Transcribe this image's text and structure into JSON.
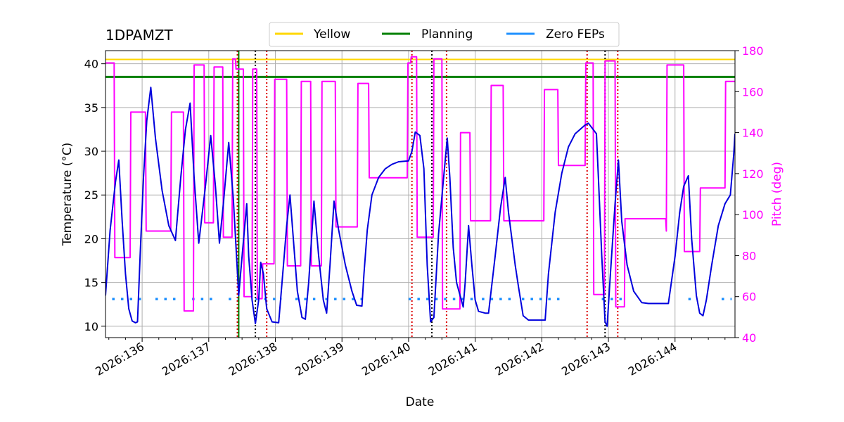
{
  "chart_data": {
    "type": "line",
    "title": "1DPAMZT",
    "xlabel": "Date",
    "ylabel": "Temperature ($^\\circ$C)",
    "ylabel_display": "Temperature (°C)",
    "y2label": "Pitch (deg)",
    "xlim": [
      135.45,
      144.9
    ],
    "ylim": [
      8.7,
      41.5
    ],
    "y2lim": [
      40,
      180
    ],
    "grid": true,
    "legend_position": "top-center",
    "x_ticks": [
      {
        "value": 136,
        "label": "2026:136"
      },
      {
        "value": 137,
        "label": "2026:137"
      },
      {
        "value": 138,
        "label": "2026:138"
      },
      {
        "value": 139,
        "label": "2026:139"
      },
      {
        "value": 140,
        "label": "2026:140"
      },
      {
        "value": 141,
        "label": "2026:141"
      },
      {
        "value": 142,
        "label": "2026:142"
      },
      {
        "value": 143,
        "label": "2026:143"
      },
      {
        "value": 144,
        "label": "2026:144"
      }
    ],
    "y_ticks": [
      10,
      15,
      20,
      25,
      30,
      35,
      40
    ],
    "y2_ticks": [
      40,
      60,
      80,
      100,
      120,
      140,
      160,
      180
    ],
    "colors": {
      "temperature": "#0000dd",
      "pitch": "#ff00ff",
      "yellow": "#ffd700",
      "planning": "#008000",
      "zero_feps": "#1e90ff",
      "red_marker": "#dd0000",
      "black_marker": "#000000"
    },
    "limit_lines": [
      {
        "name": "Yellow",
        "value": 40.5
      },
      {
        "name": "Planning",
        "value": 38.5
      },
      {
        "name": "Zero FEPs",
        "value": 13.1
      }
    ],
    "vertical_markers": {
      "green": [
        137.45
      ],
      "black_dotted": [
        137.7,
        140.35,
        142.95
      ],
      "red_dotted": [
        137.43,
        137.87,
        140.05,
        140.57,
        142.68,
        143.14
      ]
    },
    "zero_fep_intervals": [
      [
        135.55,
        136.0
      ],
      [
        136.2,
        136.5
      ],
      [
        136.75,
        137.1
      ],
      [
        137.3,
        137.45
      ],
      [
        137.7,
        138.1
      ],
      [
        138.3,
        138.6
      ],
      [
        138.75,
        139.4
      ],
      [
        140.0,
        140.3
      ],
      [
        140.4,
        141.0
      ],
      [
        141.1,
        141.6
      ],
      [
        141.7,
        142.3
      ],
      [
        142.9,
        143.2
      ],
      [
        144.2,
        144.3
      ],
      [
        144.7,
        144.85
      ]
    ],
    "series": [
      {
        "name": "Temperature",
        "axis": "left",
        "points": [
          [
            135.45,
            13.5
          ],
          [
            135.52,
            21.0
          ],
          [
            135.6,
            26.5
          ],
          [
            135.65,
            29.0
          ],
          [
            135.7,
            22.0
          ],
          [
            135.75,
            16.0
          ],
          [
            135.8,
            12.0
          ],
          [
            135.85,
            10.6
          ],
          [
            135.9,
            10.4
          ],
          [
            135.93,
            10.5
          ],
          [
            135.97,
            18.0
          ],
          [
            136.02,
            27.0
          ],
          [
            136.07,
            33.5
          ],
          [
            136.13,
            37.3
          ],
          [
            136.2,
            31.5
          ],
          [
            136.3,
            25.5
          ],
          [
            136.4,
            21.5
          ],
          [
            136.5,
            19.8
          ],
          [
            136.58,
            27.0
          ],
          [
            136.65,
            32.5
          ],
          [
            136.72,
            35.5
          ],
          [
            136.78,
            27.0
          ],
          [
            136.85,
            19.5
          ],
          [
            136.95,
            26.0
          ],
          [
            137.03,
            31.8
          ],
          [
            137.1,
            26.0
          ],
          [
            137.16,
            19.5
          ],
          [
            137.22,
            24.0
          ],
          [
            137.3,
            31.0
          ],
          [
            137.37,
            24.5
          ],
          [
            137.45,
            13.5
          ],
          [
            137.5,
            18.0
          ],
          [
            137.57,
            24.0
          ],
          [
            137.6,
            18.0
          ],
          [
            137.65,
            13.0
          ],
          [
            137.7,
            10.3
          ],
          [
            137.75,
            13.0
          ],
          [
            137.78,
            17.3
          ],
          [
            137.82,
            16.0
          ],
          [
            137.87,
            12.0
          ],
          [
            137.95,
            10.5
          ],
          [
            138.05,
            10.4
          ],
          [
            138.1,
            15.0
          ],
          [
            138.17,
            21.5
          ],
          [
            138.22,
            25.0
          ],
          [
            138.28,
            19.0
          ],
          [
            138.33,
            14.0
          ],
          [
            138.4,
            11.0
          ],
          [
            138.45,
            10.8
          ],
          [
            138.5,
            15.0
          ],
          [
            138.58,
            24.3
          ],
          [
            138.65,
            18.0
          ],
          [
            138.72,
            13.0
          ],
          [
            138.77,
            11.5
          ],
          [
            138.82,
            17.0
          ],
          [
            138.88,
            24.3
          ],
          [
            138.95,
            21.0
          ],
          [
            139.05,
            17.0
          ],
          [
            139.15,
            14.0
          ],
          [
            139.22,
            12.4
          ],
          [
            139.3,
            12.3
          ],
          [
            139.33,
            16.0
          ],
          [
            139.38,
            21.0
          ],
          [
            139.45,
            25.0
          ],
          [
            139.55,
            27.0
          ],
          [
            139.65,
            28.0
          ],
          [
            139.75,
            28.5
          ],
          [
            139.85,
            28.8
          ],
          [
            140.0,
            28.9
          ],
          [
            140.05,
            30.0
          ],
          [
            140.1,
            32.2
          ],
          [
            140.17,
            31.8
          ],
          [
            140.23,
            28.0
          ],
          [
            140.28,
            17.0
          ],
          [
            140.33,
            10.5
          ],
          [
            140.38,
            11.0
          ],
          [
            140.45,
            20.5
          ],
          [
            140.52,
            26.5
          ],
          [
            140.58,
            31.5
          ],
          [
            140.62,
            27.0
          ],
          [
            140.67,
            19.0
          ],
          [
            140.72,
            15.0
          ],
          [
            140.82,
            12.2
          ],
          [
            140.85,
            15.0
          ],
          [
            140.9,
            21.5
          ],
          [
            140.95,
            17.0
          ],
          [
            141.0,
            13.0
          ],
          [
            141.05,
            11.7
          ],
          [
            141.15,
            11.5
          ],
          [
            141.2,
            11.5
          ],
          [
            141.3,
            18.0
          ],
          [
            141.38,
            23.5
          ],
          [
            141.45,
            27.0
          ],
          [
            141.5,
            23.0
          ],
          [
            141.6,
            17.0
          ],
          [
            141.65,
            14.5
          ],
          [
            141.72,
            11.2
          ],
          [
            141.8,
            10.7
          ],
          [
            142.05,
            10.7
          ],
          [
            142.1,
            16.0
          ],
          [
            142.2,
            23.0
          ],
          [
            142.3,
            27.5
          ],
          [
            142.4,
            30.5
          ],
          [
            142.5,
            32.0
          ],
          [
            142.65,
            33.0
          ],
          [
            142.7,
            33.2
          ],
          [
            142.82,
            32.0
          ],
          [
            142.85,
            27.0
          ],
          [
            142.9,
            18.0
          ],
          [
            142.95,
            10.5
          ],
          [
            142.98,
            10.0
          ],
          [
            143.03,
            16.0
          ],
          [
            143.1,
            24.0
          ],
          [
            143.15,
            29.0
          ],
          [
            143.2,
            22.0
          ],
          [
            143.28,
            17.0
          ],
          [
            143.38,
            14.0
          ],
          [
            143.5,
            12.7
          ],
          [
            143.6,
            12.6
          ],
          [
            143.9,
            12.6
          ],
          [
            144.0,
            18.0
          ],
          [
            144.07,
            23.0
          ],
          [
            144.13,
            26.0
          ],
          [
            144.2,
            27.2
          ],
          [
            144.25,
            20.0
          ],
          [
            144.32,
            13.5
          ],
          [
            144.37,
            11.5
          ],
          [
            144.42,
            11.2
          ],
          [
            144.47,
            13.0
          ],
          [
            144.55,
            17.0
          ],
          [
            144.65,
            21.5
          ],
          [
            144.75,
            24.0
          ],
          [
            144.83,
            25.0
          ],
          [
            144.88,
            29.5
          ],
          [
            144.9,
            32.0
          ]
        ]
      },
      {
        "name": "Pitch",
        "axis": "right",
        "points": [
          [
            135.45,
            174
          ],
          [
            135.58,
            174
          ],
          [
            135.59,
            79
          ],
          [
            135.82,
            79
          ],
          [
            135.83,
            150
          ],
          [
            136.05,
            150
          ],
          [
            136.06,
            92
          ],
          [
            136.43,
            92
          ],
          [
            136.44,
            150
          ],
          [
            136.62,
            150
          ],
          [
            136.63,
            53
          ],
          [
            136.77,
            53
          ],
          [
            136.78,
            173
          ],
          [
            136.93,
            173
          ],
          [
            136.94,
            96
          ],
          [
            137.07,
            96
          ],
          [
            137.08,
            172
          ],
          [
            137.21,
            172
          ],
          [
            137.22,
            89
          ],
          [
            137.35,
            89
          ],
          [
            137.36,
            176
          ],
          [
            137.4,
            176
          ],
          [
            137.41,
            171
          ],
          [
            137.52,
            171
          ],
          [
            137.53,
            60
          ],
          [
            137.65,
            60
          ],
          [
            137.66,
            171
          ],
          [
            137.72,
            171
          ],
          [
            137.73,
            59
          ],
          [
            137.8,
            59
          ],
          [
            137.81,
            76
          ],
          [
            137.98,
            76
          ],
          [
            137.99,
            166
          ],
          [
            138.17,
            166
          ],
          [
            138.18,
            75
          ],
          [
            138.38,
            75
          ],
          [
            138.39,
            165
          ],
          [
            138.53,
            165
          ],
          [
            138.54,
            75
          ],
          [
            138.69,
            75
          ],
          [
            138.7,
            165
          ],
          [
            138.9,
            165
          ],
          [
            138.91,
            94
          ],
          [
            139.23,
            94
          ],
          [
            139.24,
            164
          ],
          [
            139.4,
            164
          ],
          [
            139.41,
            118
          ],
          [
            139.98,
            118
          ],
          [
            139.99,
            174
          ],
          [
            140.03,
            174
          ],
          [
            140.04,
            177
          ],
          [
            140.12,
            177
          ],
          [
            140.13,
            89
          ],
          [
            140.37,
            89
          ],
          [
            140.38,
            176
          ],
          [
            140.5,
            176
          ],
          [
            140.51,
            54
          ],
          [
            140.77,
            54
          ],
          [
            140.78,
            140
          ],
          [
            140.92,
            140
          ],
          [
            140.93,
            97
          ],
          [
            141.23,
            97
          ],
          [
            141.24,
            163
          ],
          [
            141.42,
            163
          ],
          [
            141.43,
            97
          ],
          [
            142.03,
            97
          ],
          [
            142.04,
            161
          ],
          [
            142.24,
            161
          ],
          [
            142.25,
            124
          ],
          [
            142.65,
            124
          ],
          [
            142.66,
            174
          ],
          [
            142.77,
            174
          ],
          [
            142.78,
            61
          ],
          [
            142.94,
            61
          ],
          [
            142.95,
            175
          ],
          [
            143.1,
            175
          ],
          [
            143.11,
            55
          ],
          [
            143.24,
            55
          ],
          [
            143.25,
            98
          ],
          [
            143.86,
            98
          ],
          [
            143.87,
            92
          ],
          [
            143.88,
            173
          ],
          [
            144.13,
            173
          ],
          [
            144.14,
            82
          ],
          [
            144.37,
            82
          ],
          [
            144.38,
            113
          ],
          [
            144.75,
            113
          ],
          [
            144.76,
            165
          ],
          [
            144.9,
            165
          ]
        ]
      }
    ]
  },
  "legend": {
    "items": [
      {
        "label": "Yellow",
        "color": "#ffd700"
      },
      {
        "label": "Planning",
        "color": "#008000"
      },
      {
        "label": "Zero FEPs",
        "color": "#1e90ff"
      }
    ]
  }
}
